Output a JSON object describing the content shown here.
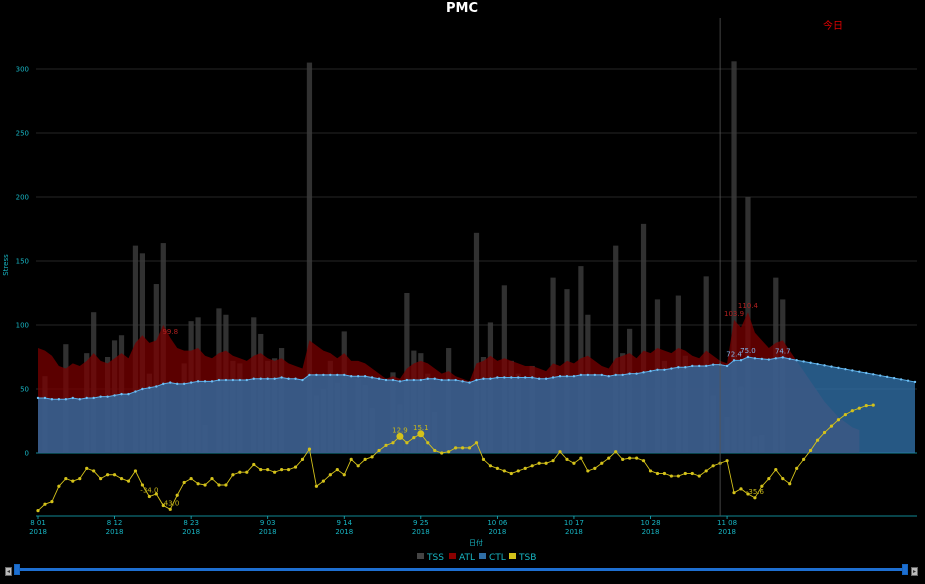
{
  "chart_data": {
    "type": "bar+area+line",
    "title": "PMC",
    "xlabel": "日付",
    "ylabel": "Stress",
    "today_label": "今日",
    "today_date": "2018-11-07",
    "ylim": [
      -50,
      310
    ],
    "yticks": [
      0,
      50,
      100,
      150,
      200,
      250,
      300
    ],
    "xticks": [
      {
        "d": "8 01",
        "y": "2018"
      },
      {
        "d": "8 12",
        "y": "2018"
      },
      {
        "d": "8 23",
        "y": "2018"
      },
      {
        "d": "9 03",
        "y": "2018"
      },
      {
        "d": "9 14",
        "y": "2018"
      },
      {
        "d": "9 25",
        "y": "2018"
      },
      {
        "d": "10 06",
        "y": "2018"
      },
      {
        "d": "10 17",
        "y": "2018"
      },
      {
        "d": "10 28",
        "y": "2018"
      },
      {
        "d": "11 08",
        "y": "2018"
      }
    ],
    "x_range": [
      "2018-08-01",
      "2018-11-19"
    ],
    "grid": true,
    "legend_position": "bottom",
    "colors": {
      "tss": "#3a3a3a",
      "atl": "#8b0000",
      "ctl": "#2f6ea5",
      "tsb": "#d4c21a",
      "axis": "#17b6c4",
      "today": "#e00000"
    },
    "series": [
      {
        "name": "TSS",
        "values": [
          0,
          60,
          0,
          0,
          85,
          0,
          0,
          78,
          110,
          0,
          75,
          88,
          92,
          0,
          162,
          156,
          62,
          132,
          164,
          0,
          0,
          70,
          103,
          106,
          22,
          0,
          113,
          108,
          72,
          70,
          0,
          106,
          93,
          72,
          74,
          82,
          0,
          0,
          0,
          305,
          45,
          50,
          72,
          55,
          95,
          18,
          58,
          53,
          35,
          0,
          0,
          63,
          38,
          125,
          80,
          78,
          62,
          32,
          0,
          82,
          0,
          0,
          0,
          172,
          75,
          102,
          0,
          131,
          72,
          62,
          0,
          68,
          0,
          0,
          137,
          0,
          128,
          0,
          146,
          108,
          0,
          0,
          0,
          162,
          78,
          97,
          0,
          179,
          0,
          120,
          72,
          0,
          123,
          76,
          0,
          0,
          138,
          45,
          0,
          28,
          306,
          52,
          200,
          13,
          14,
          0,
          137,
          120
        ],
        "labels": [],
        "note": "daily stress score bars"
      },
      {
        "name": "ATL",
        "values": [
          82,
          80,
          76,
          68,
          66,
          70,
          68,
          72,
          78,
          72,
          70,
          74,
          78,
          74,
          86,
          92,
          86,
          88,
          100,
          90,
          82,
          80,
          80,
          82,
          76,
          74,
          78,
          80,
          76,
          74,
          72,
          76,
          78,
          74,
          72,
          74,
          70,
          68,
          66,
          88,
          84,
          80,
          78,
          74,
          78,
          72,
          72,
          70,
          66,
          62,
          58,
          60,
          58,
          66,
          70,
          72,
          70,
          66,
          62,
          64,
          60,
          58,
          56,
          70,
          72,
          76,
          72,
          74,
          72,
          70,
          68,
          68,
          66,
          64,
          70,
          68,
          72,
          70,
          74,
          76,
          72,
          68,
          66,
          74,
          76,
          78,
          74,
          80,
          78,
          82,
          80,
          78,
          82,
          80,
          76,
          74,
          80,
          76,
          72,
          70,
          104,
          98,
          110,
          94,
          88,
          82,
          86,
          88,
          80,
          72,
          64,
          56,
          48,
          40,
          34,
          28,
          24,
          20,
          18
        ],
        "labels": [
          {
            "i": 19,
            "v": "99.8"
          },
          {
            "i": 100,
            "v": "103.9"
          },
          {
            "i": 102,
            "v": "110.4"
          }
        ]
      },
      {
        "name": "CTL",
        "values": [
          43,
          43,
          42,
          42,
          42,
          43,
          42,
          43,
          43,
          44,
          44,
          45,
          46,
          46,
          48,
          50,
          51,
          52,
          54,
          55,
          54,
          54,
          55,
          56,
          56,
          56,
          57,
          57,
          57,
          57,
          57,
          58,
          58,
          58,
          58,
          59,
          58,
          58,
          57,
          61,
          61,
          61,
          61,
          61,
          61,
          60,
          60,
          60,
          59,
          58,
          57,
          57,
          56,
          57,
          57,
          57,
          58,
          58,
          57,
          57,
          57,
          56,
          55,
          57,
          58,
          58,
          59,
          59,
          59,
          59,
          59,
          59,
          58,
          58,
          59,
          60,
          60,
          60,
          61,
          61,
          61,
          61,
          60,
          61,
          61,
          62,
          62,
          63,
          64,
          65,
          65,
          66,
          67,
          67,
          68,
          68,
          68,
          69,
          69,
          68,
          72.4,
          72.5,
          75.0,
          74.0,
          73.5,
          73.0,
          74.0,
          74.7,
          73.5,
          72.5,
          71.5,
          70.5,
          69.5,
          68.5,
          67.5,
          66.5,
          65.5,
          64.5,
          63.5,
          62.5,
          61.5,
          60.5,
          59.5,
          58.5,
          57.5,
          56.5,
          55.5
        ],
        "labels": [
          {
            "i": 100,
            "v": "72.4"
          },
          {
            "i": 102,
            "v": "75.0"
          },
          {
            "i": 107,
            "v": "74.7"
          }
        ]
      },
      {
        "name": "TSB",
        "values": [
          -45,
          -40,
          -38,
          -26,
          -20,
          -22,
          -20,
          -12,
          -14,
          -20,
          -17,
          -17,
          -20,
          -22,
          -14,
          -25,
          -34,
          -32,
          -41,
          -44,
          -33,
          -23,
          -20,
          -24,
          -25,
          -20,
          -25,
          -25,
          -17,
          -15,
          -15,
          -9,
          -13,
          -13,
          -15,
          -13,
          -13,
          -11,
          -5,
          3,
          -26,
          -22,
          -17,
          -13,
          -17,
          -5,
          -10,
          -5,
          -3,
          2,
          6,
          8,
          13,
          8,
          12,
          15,
          8,
          2,
          0,
          1,
          4,
          4,
          4,
          8,
          -5,
          -10,
          -12,
          -14,
          -16,
          -14,
          -12,
          -10,
          -8,
          -8,
          -6,
          1,
          -5,
          -8,
          -4,
          -14,
          -12,
          -8,
          -4,
          1,
          -5,
          -4,
          -4,
          -6,
          -14,
          -16,
          -16,
          -18,
          -18,
          -16,
          -16,
          -18,
          -14,
          -10,
          -8,
          -6,
          -31,
          -28,
          -32,
          -35,
          -26,
          -20,
          -13,
          -20,
          -24,
          -12,
          -5,
          2,
          10,
          16,
          21,
          26,
          30,
          33,
          35,
          37,
          37.4
        ],
        "labels": [
          {
            "i": 16,
            "v": "-34.0"
          },
          {
            "i": 19,
            "v": "-43.0"
          },
          {
            "i": 52,
            "v": "12.9"
          },
          {
            "i": 55,
            "v": "15.1"
          },
          {
            "i": 103,
            "v": "-35.6"
          },
          {
            "i": 126,
            "v": "37.4"
          }
        ]
      }
    ]
  },
  "legend": {
    "tss": "TSS",
    "atl": "ATL",
    "ctl": "CTL",
    "tsb": "TSB"
  },
  "slider": {
    "left_btn": "◂",
    "right_btn": "▸"
  }
}
